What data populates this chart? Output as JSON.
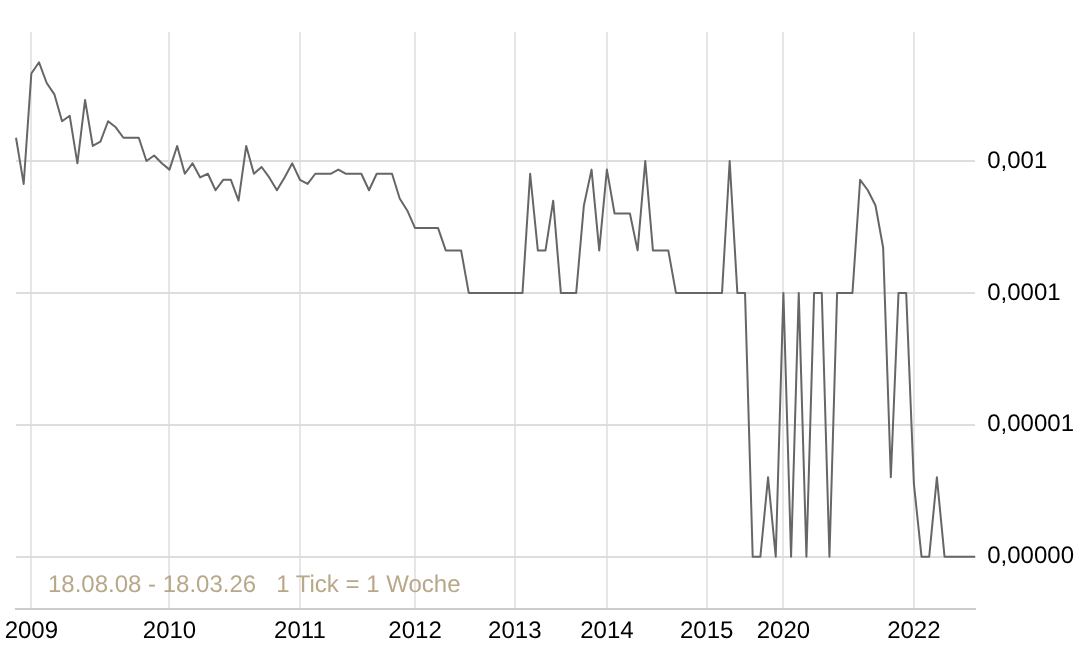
{
  "chart_data": {
    "type": "line",
    "categories": [
      null,
      null,
      "2009",
      null,
      null,
      null,
      null,
      null,
      null,
      null,
      null,
      null,
      null,
      null,
      null,
      null,
      null,
      null,
      null,
      null,
      "2010",
      null,
      null,
      null,
      null,
      null,
      null,
      null,
      null,
      null,
      null,
      null,
      null,
      null,
      null,
      null,
      null,
      "2011",
      null,
      null,
      null,
      null,
      null,
      null,
      null,
      null,
      null,
      null,
      null,
      null,
      null,
      null,
      "2012",
      null,
      null,
      null,
      null,
      null,
      null,
      null,
      null,
      null,
      null,
      null,
      null,
      "2013",
      null,
      null,
      null,
      null,
      null,
      null,
      null,
      null,
      null,
      null,
      null,
      "2014",
      null,
      null,
      null,
      null,
      null,
      null,
      null,
      null,
      null,
      null,
      null,
      null,
      "2015",
      null,
      null,
      null,
      null,
      null,
      null,
      null,
      null,
      null,
      "2020",
      null,
      null,
      null,
      null,
      null,
      null,
      null,
      null,
      null,
      null,
      null,
      null,
      null,
      null,
      null,
      null,
      "2022",
      null,
      null,
      null,
      null,
      null,
      null,
      null,
      null
    ],
    "series": [
      {
        "color": "#666666",
        "values": [
          0.0015,
          0.00067,
          0.0046,
          0.0056,
          0.0039,
          0.0032,
          0.002,
          0.0022,
          0.00096,
          0.0029,
          0.0013,
          0.0014,
          0.002,
          0.0018,
          0.0015,
          0.0015,
          0.0015,
          0.001,
          0.0011,
          0.00096,
          0.00086,
          0.0013,
          0.0008,
          0.00096,
          0.00075,
          0.0008,
          0.0006,
          0.00072,
          0.00072,
          0.0005,
          0.0013,
          0.0008,
          0.0009,
          0.00075,
          0.0006,
          0.00075,
          0.00096,
          0.00072,
          0.00067,
          0.0008,
          0.0008,
          0.0008,
          0.00086,
          0.0008,
          0.0008,
          0.0008,
          0.0006,
          0.0008,
          0.0008,
          0.0008,
          0.00052,
          0.00042,
          0.00031,
          0.00031,
          0.00031,
          0.00031,
          0.00021,
          0.00021,
          0.00021,
          0.0001,
          0.0001,
          0.0001,
          0.0001,
          0.0001,
          0.0001,
          0.0001,
          0.0001,
          0.0008,
          0.00021,
          0.00021,
          0.0005,
          0.0001,
          0.0001,
          0.0001,
          0.00046,
          0.00086,
          0.00021,
          0.00086,
          0.0004,
          0.0004,
          0.0004,
          0.00021,
          0.001,
          0.00021,
          0.00021,
          0.00021,
          0.0001,
          0.0001,
          0.0001,
          0.0001,
          0.0001,
          0.0001,
          0.0001,
          0.001,
          0.0001,
          0.0001,
          1e-06,
          1e-06,
          4e-06,
          1e-06,
          0.0001,
          1e-06,
          0.0001,
          1e-06,
          0.0001,
          0.0001,
          1e-06,
          0.0001,
          0.0001,
          0.0001,
          0.00072,
          0.0006,
          0.00046,
          0.00022,
          4e-06,
          0.0001,
          0.0001,
          3.6e-06,
          1e-06,
          1e-06,
          4e-06,
          1e-06,
          1e-06,
          1e-06,
          1e-06,
          1e-06
        ]
      }
    ],
    "log": true,
    "ylim": [
      4e-07,
      0.0095
    ],
    "yticks": [
      {
        "value": 1e-06,
        "label": "0,00000"
      },
      {
        "value": 1e-05,
        "label": "0,00001"
      },
      {
        "value": 0.0001,
        "label": "0,0001"
      },
      {
        "value": 0.001,
        "label": "0,001"
      }
    ],
    "grid": true,
    "marker": "none",
    "line_style": "solid",
    "annotations": [
      "18.08.08 - 18.03.26   1 Tick = 1 Woche"
    ]
  }
}
